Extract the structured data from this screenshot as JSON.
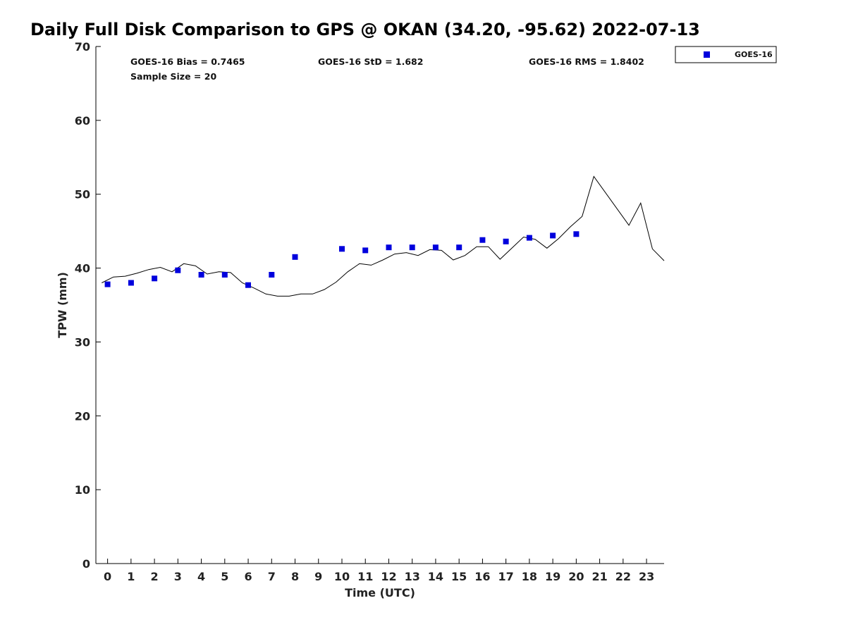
{
  "chart_data": {
    "type": "scatter",
    "title": "Daily Full Disk Comparison to GPS @ OKAN (34.20, -95.62) 2022-07-13",
    "xlabel": "Time (UTC)",
    "ylabel": "TPW (mm)",
    "xlim": [
      -0.5,
      23.75
    ],
    "ylim": [
      0,
      70
    ],
    "x_ticks": [
      0,
      1,
      2,
      3,
      4,
      5,
      6,
      7,
      8,
      9,
      10,
      11,
      12,
      13,
      14,
      15,
      16,
      17,
      18,
      19,
      20,
      21,
      22,
      23
    ],
    "y_ticks": [
      0,
      10,
      20,
      30,
      40,
      50,
      60,
      70
    ],
    "grid": false,
    "legend_position": "top-right, outside plot",
    "stats": {
      "bias": "GOES-16 Bias = 0.7465",
      "std": "GOES-16 StD = 1.682",
      "rms": "GOES-16 RMS = 1.8402",
      "sample": "Sample Size = 20"
    },
    "series": [
      {
        "name": "GOES-16",
        "kind": "scatter",
        "marker": "square",
        "color": "#0000dd",
        "x": [
          0,
          1,
          2,
          3,
          4,
          5,
          6,
          7,
          8,
          10,
          11,
          12,
          13,
          14,
          15,
          16,
          17,
          18,
          19,
          20
        ],
        "y": [
          37.8,
          38.0,
          38.6,
          39.7,
          39.1,
          39.1,
          37.7,
          39.1,
          41.5,
          42.6,
          42.4,
          42.8,
          42.8,
          42.8,
          42.8,
          43.8,
          43.6,
          44.1,
          44.4,
          44.6
        ]
      },
      {
        "kind": "line",
        "color": "#000000",
        "x": [
          -0.25,
          0.25,
          0.75,
          1.25,
          1.75,
          2.25,
          2.75,
          3.25,
          3.75,
          4.25,
          4.75,
          5.25,
          5.75,
          6.25,
          6.75,
          7.25,
          7.75,
          8.25,
          8.75,
          9.25,
          9.75,
          10.25,
          10.75,
          11.25,
          11.75,
          12.25,
          12.75,
          13.25,
          13.75,
          14.25,
          14.75,
          15.25,
          15.75,
          16.25,
          16.75,
          17.25,
          17.75,
          18.25,
          18.75,
          19.25,
          19.75,
          20.25,
          20.75,
          22.25,
          22.75,
          23.25,
          23.75
        ],
        "y": [
          38.0,
          38.8,
          38.9,
          39.3,
          39.8,
          40.1,
          39.5,
          40.6,
          40.3,
          39.2,
          39.5,
          39.4,
          38.0,
          37.3,
          36.5,
          36.2,
          36.2,
          36.5,
          36.5,
          37.1,
          38.1,
          39.5,
          40.6,
          40.4,
          41.1,
          41.9,
          42.1,
          41.7,
          42.5,
          42.4,
          41.1,
          41.7,
          42.9,
          42.9,
          41.2,
          42.7,
          44.2,
          43.9,
          42.7,
          44.0,
          45.6,
          47.0,
          52.4,
          45.8,
          48.8,
          42.6,
          41.0
        ]
      }
    ]
  }
}
